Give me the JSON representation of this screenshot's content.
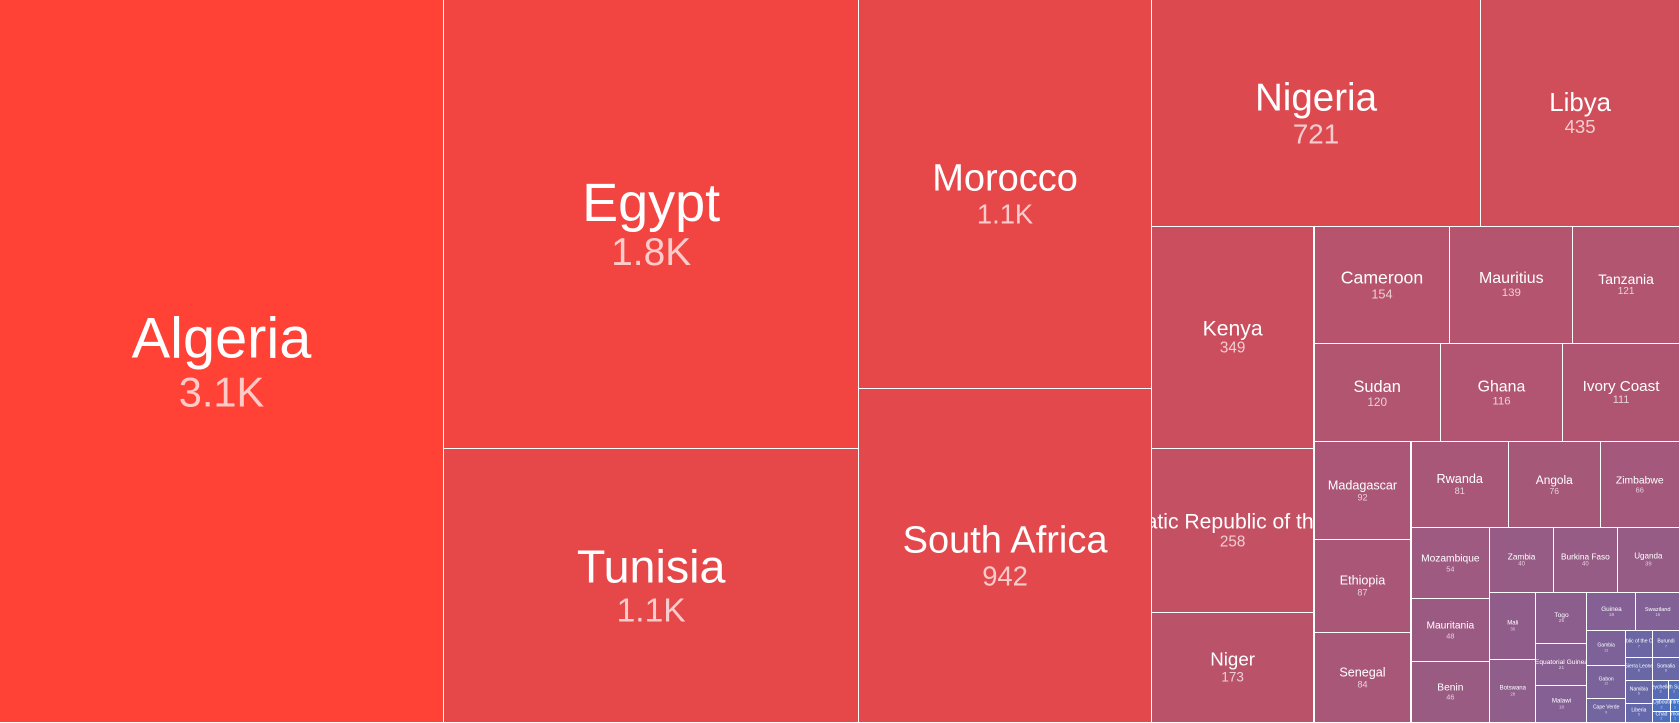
{
  "chart_data": {
    "type": "treemap",
    "title": "",
    "value_format": "abbreviated",
    "color_scale": {
      "low": "#3f72c8",
      "high": "#ff4136"
    },
    "items": [
      {
        "name": "Algeria",
        "label": "3.1K",
        "value": 3100
      },
      {
        "name": "Egypt",
        "label": "1.8K",
        "value": 1800
      },
      {
        "name": "Tunisia",
        "label": "1.1K",
        "value": 1100
      },
      {
        "name": "Morocco",
        "label": "1.1K",
        "value": 1100
      },
      {
        "name": "South Africa",
        "label": "942",
        "value": 942
      },
      {
        "name": "Nigeria",
        "label": "721",
        "value": 721
      },
      {
        "name": "Libya",
        "label": "435",
        "value": 435
      },
      {
        "name": "Kenya",
        "label": "349",
        "value": 349
      },
      {
        "name": "Democratic Republic of the Congo",
        "label": "258",
        "value": 258
      },
      {
        "name": "Niger",
        "label": "173",
        "value": 173
      },
      {
        "name": "Cameroon",
        "label": "154",
        "value": 154
      },
      {
        "name": "Mauritius",
        "label": "139",
        "value": 139
      },
      {
        "name": "Tanzania",
        "label": "121",
        "value": 121
      },
      {
        "name": "Sudan",
        "label": "120",
        "value": 120
      },
      {
        "name": "Ghana",
        "label": "116",
        "value": 116
      },
      {
        "name": "Ivory Coast",
        "label": "111",
        "value": 111
      },
      {
        "name": "Madagascar",
        "label": "92",
        "value": 92
      },
      {
        "name": "Ethiopia",
        "label": "87",
        "value": 87
      },
      {
        "name": "Senegal",
        "label": "84",
        "value": 84
      },
      {
        "name": "Rwanda",
        "label": "81",
        "value": 81
      },
      {
        "name": "Angola",
        "label": "76",
        "value": 76
      },
      {
        "name": "Zimbabwe",
        "label": "66",
        "value": 66
      },
      {
        "name": "Mozambique",
        "label": "54",
        "value": 54
      },
      {
        "name": "Mauritania",
        "label": "48",
        "value": 48
      },
      {
        "name": "Benin",
        "label": "46",
        "value": 46
      },
      {
        "name": "Zambia",
        "label": "40",
        "value": 40
      },
      {
        "name": "Burkina Faso",
        "label": "40",
        "value": 40
      },
      {
        "name": "Uganda",
        "label": "39",
        "value": 39
      },
      {
        "name": "Mali",
        "label": "30",
        "value": 30
      },
      {
        "name": "Botswana",
        "label": "28",
        "value": 28
      },
      {
        "name": "Togo",
        "label": "25",
        "value": 25
      },
      {
        "name": "Equatorial Guinea",
        "label": "21",
        "value": 21
      },
      {
        "name": "Malawi",
        "label": "18",
        "value": 18
      },
      {
        "name": "Guinea",
        "label": "18",
        "value": 18
      },
      {
        "name": "Swaziland",
        "label": "16",
        "value": 16
      },
      {
        "name": "Gambia",
        "label": "13",
        "value": 13
      },
      {
        "name": "Gabon",
        "label": "12",
        "value": 12
      },
      {
        "name": "Cape Verde",
        "label": "9",
        "value": 9
      },
      {
        "name": "Republic of the Congo",
        "label": "7",
        "value": 7
      },
      {
        "name": "Burundi",
        "label": "7",
        "value": 7
      },
      {
        "name": "Sierra Leone",
        "label": "6",
        "value": 6
      },
      {
        "name": "Somalia",
        "label": "6",
        "value": 6
      },
      {
        "name": "Namibia",
        "label": "6",
        "value": 6
      },
      {
        "name": "Liberia",
        "label": "5",
        "value": 5
      },
      {
        "name": "Seychelles",
        "label": "3",
        "value": 3
      },
      {
        "name": "South Sudan",
        "label": "2",
        "value": 2
      },
      {
        "name": "Djibouti",
        "label": "2",
        "value": 2
      },
      {
        "name": "Chad",
        "label": "2",
        "value": 2
      },
      {
        "name": "Eritrea",
        "label": "1",
        "value": 1
      },
      {
        "name": "Comoros",
        "label": "1",
        "value": 1
      }
    ]
  }
}
